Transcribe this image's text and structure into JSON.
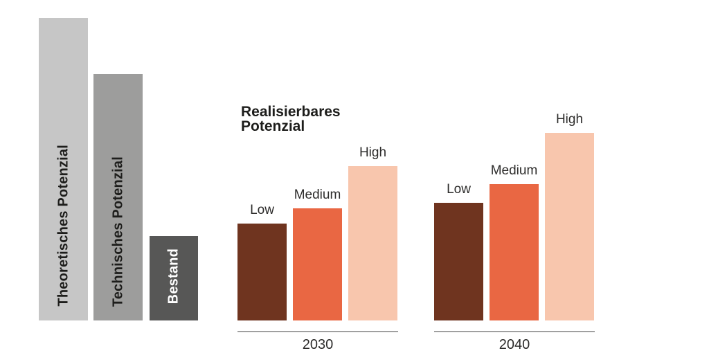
{
  "title": {
    "line1": "Realisierbares",
    "line2": "Potenzial"
  },
  "colors": {
    "background": "#ffffff",
    "theoretisches_bar": "#c6c6c6",
    "technisches_bar": "#9d9d9c",
    "bestand_bar": "#575756",
    "low_bar": "#6f341f",
    "medium_bar": "#e96743",
    "high_bar": "#f8c6ad",
    "axis_line": "#a0a0a0",
    "title_text": "#1d1d1b",
    "label_text": "#2d2c2b",
    "bar_text_dark": "#1d1d1b",
    "bar_text_light": "#ffffff"
  },
  "chart_data": {
    "type": "bar",
    "title": "Realisierbares Potenzial",
    "unit": "relative scale (Theoretisches Potenzial = 100)",
    "grid": false,
    "legend": false,
    "ylim": [
      0,
      100
    ],
    "context_bars": [
      {
        "label": "Theoretisches Potenzial",
        "value": 100,
        "color_key": "theoretisches_bar",
        "text_color_key": "bar_text_dark"
      },
      {
        "label": "Technisches Potenzial",
        "value": 81.5,
        "color_key": "technisches_bar",
        "text_color_key": "bar_text_dark"
      },
      {
        "label": "Bestand",
        "value": 28,
        "color_key": "bestand_bar",
        "text_color_key": "bar_text_light"
      }
    ],
    "groups": [
      {
        "label": "2030",
        "series": [
          {
            "name": "Low",
            "value": 32,
            "color_key": "low_bar"
          },
          {
            "name": "Medium",
            "value": 37,
            "color_key": "medium_bar"
          },
          {
            "name": "High",
            "value": 51,
            "color_key": "high_bar"
          }
        ]
      },
      {
        "label": "2040",
        "series": [
          {
            "name": "Low",
            "value": 39,
            "color_key": "low_bar"
          },
          {
            "name": "Medium",
            "value": 45,
            "color_key": "medium_bar"
          },
          {
            "name": "High",
            "value": 62,
            "color_key": "high_bar"
          }
        ]
      }
    ]
  }
}
